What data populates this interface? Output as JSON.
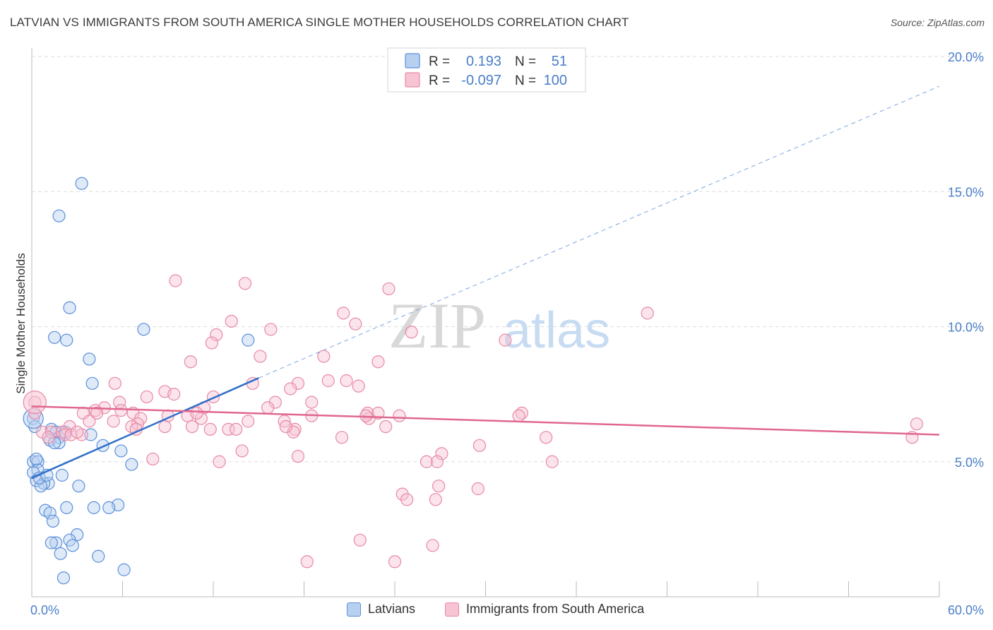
{
  "title": "LATVIAN VS IMMIGRANTS FROM SOUTH AMERICA SINGLE MOTHER HOUSEHOLDS CORRELATION CHART",
  "source": "Source: ZipAtlas.com",
  "watermark": {
    "zip": "ZIP",
    "atlas": "atlas"
  },
  "colors": {
    "blue": "#5b8fd9",
    "blue_fill": "#b8d0f0",
    "blue_line": "#2f6fc9",
    "pink": "#e889a6",
    "pink_fill": "#f7c4d3",
    "pink_line": "#e0678f",
    "axis_text": "#4a7fc9",
    "grid": "#dddddd"
  },
  "legend_top": [
    {
      "r_label": "R =",
      "r_value": "0.193",
      "n_label": "N =",
      "n_value": "51",
      "series": "Latvians"
    },
    {
      "r_label": "R =",
      "r_value": "-0.097",
      "n_label": "N =",
      "n_value": "100",
      "series": "Immigrants from South America"
    }
  ],
  "chart_data": {
    "type": "scatter",
    "title": "LATVIAN VS IMMIGRANTS FROM SOUTH AMERICA SINGLE MOTHER HOUSEHOLDS CORRELATION CHART",
    "xlabel": "",
    "ylabel": "Single Mother Households",
    "xlim": [
      0,
      60
    ],
    "ylim": [
      0,
      20
    ],
    "x_tick_labels": [
      "0.0%",
      "60.0%"
    ],
    "y_ticks": [
      5,
      10,
      15,
      20
    ],
    "y_tick_labels": [
      "5.0%",
      "10.0%",
      "15.0%",
      "20.0%"
    ],
    "grid": true,
    "legend_position": "top-center",
    "series": [
      {
        "name": "Latvians",
        "color": "#5b8fd9",
        "trend": {
          "x": [
            0,
            15
          ],
          "y": [
            4.4,
            8.1
          ],
          "dashed_to": [
            60,
            18.9
          ]
        },
        "points": [
          [
            3.3,
            15.3
          ],
          [
            1.8,
            14.1
          ],
          [
            2.5,
            10.7
          ],
          [
            7.4,
            9.9
          ],
          [
            1.5,
            9.6
          ],
          [
            2.3,
            9.5
          ],
          [
            14.3,
            9.5
          ],
          [
            3.8,
            8.8
          ],
          [
            4.0,
            7.9
          ],
          [
            0.1,
            6.6
          ],
          [
            1.3,
            6.2
          ],
          [
            1.6,
            6.1
          ],
          [
            3.9,
            6.0
          ],
          [
            1.8,
            5.9
          ],
          [
            1.2,
            5.8
          ],
          [
            1.8,
            5.7
          ],
          [
            4.7,
            5.6
          ],
          [
            5.9,
            5.4
          ],
          [
            0.1,
            5.0
          ],
          [
            0.4,
            5.0
          ],
          [
            6.6,
            4.9
          ],
          [
            0.4,
            4.7
          ],
          [
            0.1,
            4.6
          ],
          [
            2.0,
            4.5
          ],
          [
            0.3,
            4.3
          ],
          [
            1.1,
            4.2
          ],
          [
            0.8,
            4.2
          ],
          [
            0.6,
            4.1
          ],
          [
            3.1,
            4.1
          ],
          [
            5.7,
            3.4
          ],
          [
            4.1,
            3.3
          ],
          [
            5.1,
            3.3
          ],
          [
            2.3,
            3.3
          ],
          [
            0.9,
            3.2
          ],
          [
            1.2,
            3.1
          ],
          [
            1.4,
            2.8
          ],
          [
            3.0,
            2.3
          ],
          [
            2.5,
            2.1
          ],
          [
            1.6,
            2.0
          ],
          [
            1.3,
            2.0
          ],
          [
            2.7,
            1.9
          ],
          [
            1.9,
            1.6
          ],
          [
            4.4,
            1.5
          ],
          [
            6.1,
            1.0
          ],
          [
            2.1,
            0.7
          ],
          [
            0.2,
            6.3
          ],
          [
            0.5,
            4.4
          ],
          [
            1.0,
            4.5
          ],
          [
            0.3,
            5.1
          ],
          [
            2.2,
            6.1
          ],
          [
            1.5,
            5.7
          ]
        ]
      },
      {
        "name": "Immigrants from South America",
        "color": "#e889a6",
        "trend": {
          "x": [
            0,
            60
          ],
          "y": [
            7.05,
            6.0
          ]
        },
        "points": [
          [
            0.2,
            7.2
          ],
          [
            0.2,
            6.8
          ],
          [
            9.5,
            11.7
          ],
          [
            14.1,
            11.6
          ],
          [
            23.6,
            11.4
          ],
          [
            40.7,
            10.5
          ],
          [
            20.6,
            10.5
          ],
          [
            13.2,
            10.2
          ],
          [
            21.4,
            10.1
          ],
          [
            15.8,
            9.9
          ],
          [
            12.2,
            9.7
          ],
          [
            25.1,
            9.8
          ],
          [
            11.9,
            9.4
          ],
          [
            31.3,
            9.5
          ],
          [
            19.3,
            8.9
          ],
          [
            15.1,
            8.9
          ],
          [
            10.5,
            8.7
          ],
          [
            22.9,
            8.7
          ],
          [
            19.6,
            8.0
          ],
          [
            20.8,
            8.0
          ],
          [
            14.6,
            7.9
          ],
          [
            17.6,
            7.9
          ],
          [
            5.5,
            7.9
          ],
          [
            17.1,
            7.7
          ],
          [
            21.6,
            7.8
          ],
          [
            8.8,
            7.6
          ],
          [
            9.4,
            7.5
          ],
          [
            12.0,
            7.4
          ],
          [
            7.6,
            7.4
          ],
          [
            5.8,
            7.2
          ],
          [
            16.1,
            7.2
          ],
          [
            18.5,
            7.2
          ],
          [
            11.4,
            7.0
          ],
          [
            15.6,
            7.0
          ],
          [
            4.8,
            7.0
          ],
          [
            4.2,
            6.9
          ],
          [
            5.9,
            6.9
          ],
          [
            4.3,
            6.8
          ],
          [
            3.4,
            6.8
          ],
          [
            6.7,
            6.8
          ],
          [
            9.0,
            6.7
          ],
          [
            10.3,
            6.7
          ],
          [
            22.2,
            6.8
          ],
          [
            22.9,
            6.8
          ],
          [
            32.4,
            6.8
          ],
          [
            32.2,
            6.7
          ],
          [
            24.3,
            6.7
          ],
          [
            18.5,
            6.7
          ],
          [
            22.3,
            6.6
          ],
          [
            3.8,
            6.5
          ],
          [
            5.4,
            6.5
          ],
          [
            7.2,
            6.6
          ],
          [
            11.2,
            6.6
          ],
          [
            16.7,
            6.5
          ],
          [
            14.3,
            6.5
          ],
          [
            7.0,
            6.4
          ],
          [
            6.6,
            6.3
          ],
          [
            2.5,
            6.3
          ],
          [
            6.9,
            6.2
          ],
          [
            8.8,
            6.3
          ],
          [
            10.6,
            6.3
          ],
          [
            11.8,
            6.2
          ],
          [
            13.0,
            6.2
          ],
          [
            13.5,
            6.2
          ],
          [
            17.4,
            6.2
          ],
          [
            23.4,
            6.3
          ],
          [
            0.7,
            6.1
          ],
          [
            1.3,
            6.1
          ],
          [
            2.0,
            6.1
          ],
          [
            2.2,
            6.0
          ],
          [
            2.6,
            6.0
          ],
          [
            3.3,
            6.0
          ],
          [
            34.0,
            5.9
          ],
          [
            17.3,
            6.1
          ],
          [
            20.5,
            5.9
          ],
          [
            58.5,
            6.4
          ],
          [
            58.2,
            5.9
          ],
          [
            13.9,
            5.4
          ],
          [
            27.1,
            5.3
          ],
          [
            29.6,
            5.6
          ],
          [
            17.6,
            5.2
          ],
          [
            12.4,
            5.0
          ],
          [
            26.1,
            5.0
          ],
          [
            26.8,
            5.0
          ],
          [
            34.4,
            5.0
          ],
          [
            8.0,
            5.1
          ],
          [
            24.5,
            3.8
          ],
          [
            24.8,
            3.6
          ],
          [
            26.7,
            3.6
          ],
          [
            26.9,
            4.1
          ],
          [
            29.5,
            4.0
          ],
          [
            21.7,
            2.1
          ],
          [
            26.5,
            1.9
          ],
          [
            18.2,
            1.3
          ],
          [
            24.0,
            1.3
          ],
          [
            16.8,
            6.3
          ],
          [
            1.1,
            5.9
          ],
          [
            3.0,
            6.1
          ],
          [
            22.1,
            6.7
          ],
          [
            10.9,
            6.8
          ]
        ]
      }
    ]
  },
  "axes": {
    "ylabel": "Single Mother Households",
    "x_left_label": "0.0%",
    "x_right_label": "60.0%",
    "y_labels": [
      "5.0%",
      "10.0%",
      "15.0%",
      "20.0%"
    ]
  }
}
